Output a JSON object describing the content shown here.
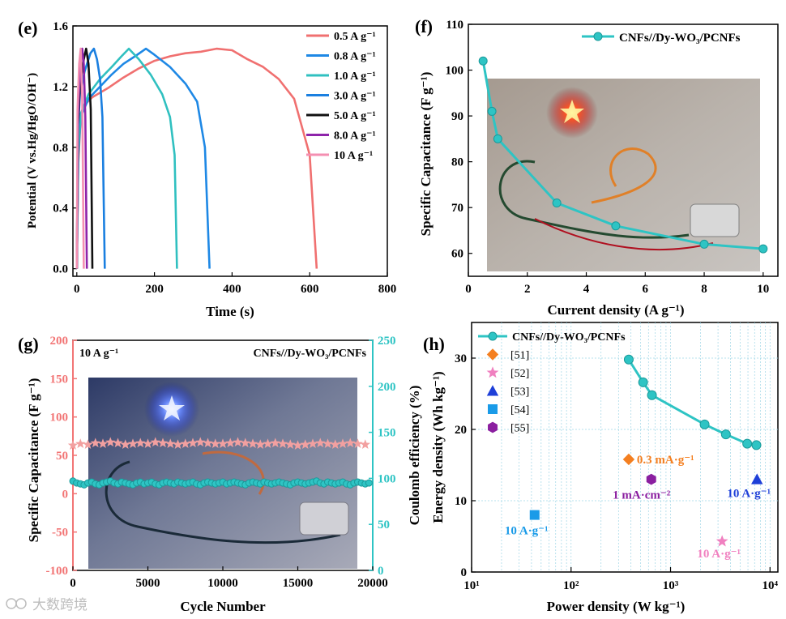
{
  "watermark": "大数跨境",
  "colors": {
    "teal": "#2ec4c4",
    "salmon": "#f27575",
    "pink_star": "#f2a0a0"
  },
  "chart_data": [
    {
      "id": "e",
      "panel_label": "(e)",
      "type": "line",
      "xlabel": "Time (s)",
      "ylabel": "Potential (V vs.Hg/HgO/OH⁻)",
      "xlim": [
        -10,
        800
      ],
      "ylim": [
        -0.05,
        1.6
      ],
      "xticks": [
        "0",
        "200",
        "400",
        "600",
        "800"
      ],
      "yticks": [
        "0.0",
        "0.4",
        "0.8",
        "1.2",
        "1.6"
      ],
      "series": [
        {
          "name": "0.5 A g⁻¹",
          "color": "#f07070",
          "x": [
            0,
            4,
            10,
            20,
            40,
            80,
            120,
            160,
            200,
            240,
            280,
            320,
            360,
            400,
            440,
            480,
            520,
            560,
            600,
            618
          ],
          "y": [
            0.0,
            0.7,
            1.0,
            1.08,
            1.13,
            1.19,
            1.26,
            1.32,
            1.37,
            1.4,
            1.42,
            1.43,
            1.45,
            1.44,
            1.38,
            1.33,
            1.25,
            1.12,
            0.75,
            0.0
          ]
        },
        {
          "name": "0.8 A g⁻¹",
          "color": "#1e88e5",
          "x": [
            0,
            4,
            10,
            30,
            60,
            90,
            120,
            150,
            178,
            200,
            240,
            280,
            310,
            330,
            342
          ],
          "y": [
            0.0,
            0.75,
            1.0,
            1.12,
            1.2,
            1.28,
            1.35,
            1.4,
            1.45,
            1.41,
            1.33,
            1.22,
            1.1,
            0.8,
            0.0
          ]
        },
        {
          "name": "1.0 A g⁻¹",
          "color": "#30c0c0",
          "x": [
            0,
            4,
            10,
            30,
            60,
            90,
            115,
            134,
            160,
            190,
            220,
            240,
            252,
            258
          ],
          "y": [
            0.0,
            0.78,
            1.02,
            1.15,
            1.25,
            1.33,
            1.4,
            1.45,
            1.38,
            1.28,
            1.15,
            1.0,
            0.75,
            0.0
          ]
        },
        {
          "name": "3.0 A g⁻¹",
          "color": "#1a7fe0",
          "x": [
            0,
            3,
            8,
            20,
            35,
            44,
            52,
            60,
            66,
            72
          ],
          "y": [
            0.0,
            0.9,
            1.15,
            1.3,
            1.42,
            1.45,
            1.38,
            1.25,
            1.0,
            0.0
          ]
        },
        {
          "name": "5.0 A g⁻¹",
          "color": "#111111",
          "x": [
            0,
            3,
            8,
            18,
            24,
            30,
            36,
            40
          ],
          "y": [
            0.0,
            0.95,
            1.2,
            1.38,
            1.45,
            1.35,
            1.05,
            0.0
          ]
        },
        {
          "name": "8.0 A g⁻¹",
          "color": "#8e24aa",
          "x": [
            0,
            3,
            8,
            14,
            18,
            22,
            26
          ],
          "y": [
            0.0,
            1.0,
            1.3,
            1.45,
            1.35,
            1.0,
            0.0
          ]
        },
        {
          "name": "10 A g⁻¹",
          "color": "#f48fb1",
          "x": [
            0,
            2,
            6,
            10,
            14,
            18
          ],
          "y": [
            0.0,
            1.05,
            1.35,
            1.45,
            1.1,
            0.0
          ]
        }
      ]
    },
    {
      "id": "f",
      "panel_label": "(f)",
      "type": "line",
      "xlabel": "Current density (A g⁻¹)",
      "ylabel": "Specific Capacitance (F g⁻¹)",
      "xlim": [
        0,
        10.5
      ],
      "ylim": [
        55,
        110
      ],
      "xticks": [
        "0",
        "2",
        "4",
        "6",
        "8",
        "10"
      ],
      "yticks": [
        "60",
        "70",
        "80",
        "90",
        "100",
        "110"
      ],
      "legend": "CNFs//Dy-WO₃/PCNFs",
      "series": [
        {
          "name": "CNFs//Dy-WO₃/PCNFs",
          "color": "#2ec4c4",
          "x": [
            0.5,
            0.8,
            1.0,
            3.0,
            5.0,
            8.0,
            10.0
          ],
          "y": [
            102,
            91,
            85,
            71,
            66,
            62,
            61
          ]
        }
      ]
    },
    {
      "id": "g",
      "panel_label": "(g)",
      "type": "scatter",
      "xlabel": "Cycle Number",
      "ylabel": "Specific Capacitance (F g⁻¹)",
      "y2label": "Coulomb efficiency (%)",
      "xlim": [
        0,
        20000
      ],
      "ylim": [
        -100,
        200
      ],
      "y2lim": [
        0,
        250
      ],
      "xticks": [
        "0",
        "5000",
        "10000",
        "15000",
        "20000"
      ],
      "yticks": [
        "-100",
        "-50",
        "0",
        "50",
        "100",
        "150",
        "200"
      ],
      "y2ticks": [
        "0",
        "50",
        "100",
        "150",
        "200",
        "250"
      ],
      "annotation_left": "10 A g⁻¹",
      "annotation_right": "CNFs//Dy-WO₃/PCNFs",
      "series": [
        {
          "name": "Specific Capacitance",
          "axis": "left",
          "marker": "star",
          "color": "#f2a0a0",
          "x_start": 0,
          "x_step": 500,
          "count": 40,
          "values": [
            63,
            65,
            64,
            66,
            65,
            67,
            66,
            64,
            65,
            66,
            65,
            67,
            66,
            65,
            64,
            65,
            66,
            67,
            66,
            65,
            65,
            66,
            67,
            66,
            65,
            64,
            65,
            66,
            65,
            64,
            63,
            64,
            65,
            66,
            65,
            64,
            65,
            66,
            65,
            64
          ]
        },
        {
          "name": "Coulomb efficiency",
          "axis": "right",
          "marker": "circle",
          "color": "#2ec4c4",
          "x_start": 0,
          "x_step": 250,
          "count": 80,
          "values": [
            97,
            95,
            94,
            93,
            95,
            96,
            94,
            93,
            95,
            96,
            97,
            95,
            94,
            96,
            95,
            94,
            93,
            95,
            96,
            94,
            95,
            96,
            94,
            93,
            95,
            96,
            95,
            94,
            96,
            95,
            94,
            95,
            96,
            94,
            93,
            95,
            96,
            95,
            94,
            95,
            96,
            94,
            95,
            96,
            95,
            94,
            93,
            95,
            96,
            95,
            94,
            96,
            95,
            94,
            95,
            96,
            95,
            94,
            93,
            95,
            96,
            95,
            94,
            95,
            96,
            97,
            95,
            94,
            96,
            95,
            94,
            95,
            96,
            94,
            93,
            95,
            96,
            95,
            94,
            95
          ]
        }
      ]
    },
    {
      "id": "h",
      "panel_label": "(h)",
      "type": "scatter",
      "xscale": "log",
      "xlabel": "Power density (W kg⁻¹)",
      "ylabel": "Energy density (Wh kg⁻¹)",
      "xlim": [
        10,
        12000
      ],
      "ylim": [
        0,
        35
      ],
      "xticks": [
        "10¹",
        "10²",
        "10³",
        "10⁴"
      ],
      "yticks": [
        "0",
        "10",
        "20",
        "30"
      ],
      "series": [
        {
          "name": "CNFs//Dy-WO₃/PCNFs",
          "marker": "circle",
          "color": "#2ec4c4",
          "x": [
            380,
            530,
            650,
            2200,
            3600,
            5900,
            7300
          ],
          "y": [
            29.8,
            26.6,
            24.8,
            20.7,
            19.3,
            18.0,
            17.8
          ]
        },
        {
          "name": "[51]",
          "marker": "diamond",
          "color": "#f47f20",
          "x": [
            380
          ],
          "y": [
            15.8
          ],
          "annotation": "0.3 mA·g⁻¹"
        },
        {
          "name": "[52]",
          "marker": "star",
          "color": "#f080c0",
          "x": [
            3300
          ],
          "y": [
            4.3
          ],
          "annotation": "10 A·g⁻¹"
        },
        {
          "name": "[53]",
          "marker": "triangle",
          "color": "#1e3fd8",
          "x": [
            7400
          ],
          "y": [
            13.0
          ],
          "annotation": "10 A·g⁻¹"
        },
        {
          "name": "[54]",
          "marker": "square",
          "color": "#1a9be8",
          "x": [
            43
          ],
          "y": [
            8.0
          ],
          "annotation": "10 A·g⁻¹"
        },
        {
          "name": "[55]",
          "marker": "hexagon",
          "color": "#8b1fa0",
          "x": [
            640
          ],
          "y": [
            13.0
          ],
          "annotation": "1 mA·cm⁻²"
        }
      ]
    }
  ]
}
